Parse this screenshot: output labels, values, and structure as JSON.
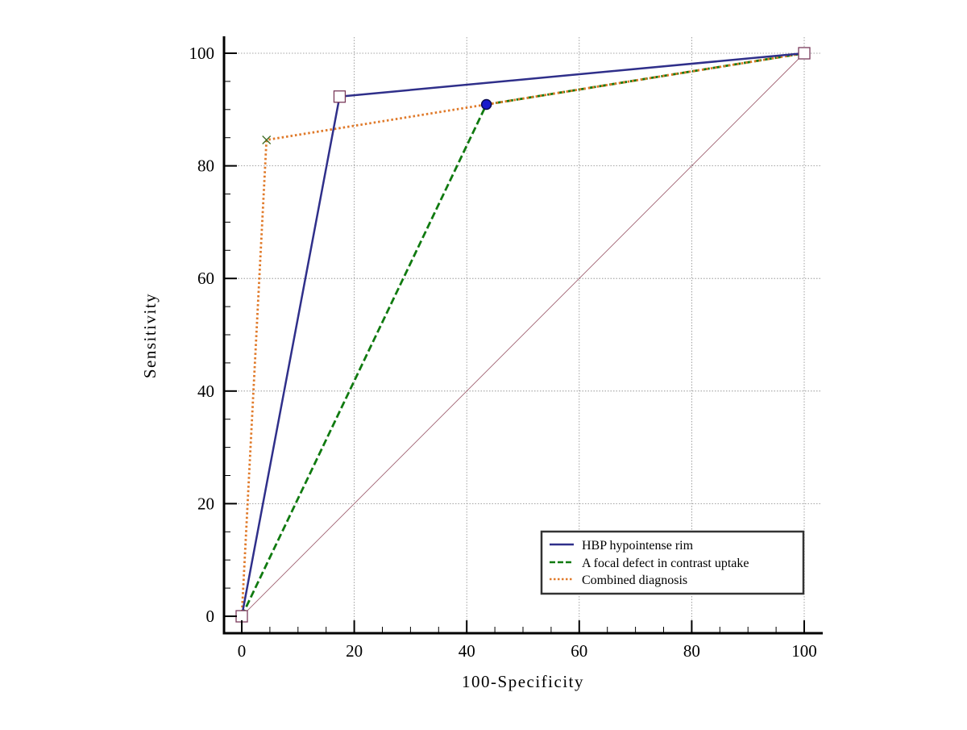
{
  "chart_data": {
    "type": "line",
    "xlabel": "100-Specificity",
    "ylabel": "Sensitivity",
    "xlim": [
      0,
      100
    ],
    "ylim": [
      0,
      100
    ],
    "x_ticks": [
      0,
      20,
      40,
      60,
      80,
      100
    ],
    "y_ticks": [
      0,
      20,
      40,
      60,
      80,
      100
    ],
    "grid": true,
    "legend_position": "bottom-right",
    "series": [
      {
        "name": "HBP hypointense rim",
        "color": "#2f2f8a",
        "line_style": "solid",
        "marker": "square",
        "x": [
          0,
          17.4,
          100
        ],
        "y": [
          0,
          92.3,
          100
        ]
      },
      {
        "name": "A focal defect in contrast uptake",
        "color": "#107a10",
        "line_style": "dashed",
        "marker": "circle",
        "x": [
          0,
          43.5,
          100
        ],
        "y": [
          0,
          90.9,
          100
        ]
      },
      {
        "name": "Combined diagnosis",
        "color": "#e07a2a",
        "line_style": "dotted",
        "marker": "cross",
        "x": [
          0,
          4.4,
          100
        ],
        "y": [
          0,
          84.6,
          100
        ]
      }
    ],
    "reference_line": {
      "x": [
        0,
        100
      ],
      "y": [
        0,
        100
      ],
      "color": "#a06070"
    }
  }
}
